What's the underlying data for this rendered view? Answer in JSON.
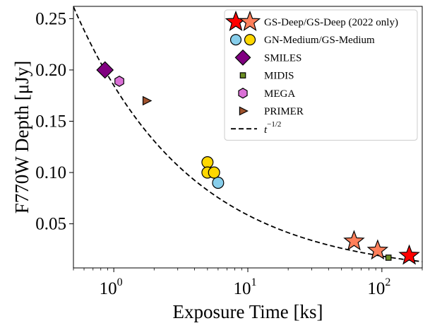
{
  "chart_data": {
    "type": "scatter",
    "xscale": "log",
    "xlim": [
      0.5,
      200
    ],
    "ylim": [
      0.007,
      0.262
    ],
    "xlabel": "Exposure Time [ks]",
    "ylabel": "F770W Depth [μJy]",
    "y_ticks": [
      {
        "value": 0.05,
        "label": "0.05"
      },
      {
        "value": 0.1,
        "label": "0.10"
      },
      {
        "value": 0.15,
        "label": "0.15"
      },
      {
        "value": 0.2,
        "label": "0.20"
      },
      {
        "value": 0.25,
        "label": "0.25"
      }
    ],
    "x_ticks": [
      {
        "value": 1,
        "base": "10",
        "exp": "0"
      },
      {
        "value": 10,
        "base": "10",
        "exp": "1"
      },
      {
        "value": 100,
        "base": "10",
        "exp": "2"
      }
    ],
    "curve": {
      "name": "t^{-1/2}",
      "label_base": "t",
      "label_exp": "−1/2",
      "coefficient": 0.185,
      "power": -0.5,
      "style": "dashed",
      "color": "#000000"
    },
    "series": [
      {
        "name": "GS-Deep",
        "marker": "star",
        "color": "#ff0000",
        "points": [
          [
            160,
            0.019
          ]
        ]
      },
      {
        "name": "GS-Deep (2022 only)",
        "marker": "star",
        "color": "#ff7f5a",
        "points": [
          [
            62,
            0.033
          ],
          [
            93,
            0.024
          ]
        ]
      },
      {
        "name": "GN-Medium",
        "marker": "circle",
        "color": "#87ceeb",
        "points": [
          [
            6.0,
            0.09
          ]
        ]
      },
      {
        "name": "GS-Medium",
        "marker": "circle",
        "color": "#ffd700",
        "points": [
          [
            5.0,
            0.11
          ],
          [
            5.0,
            0.1
          ],
          [
            5.6,
            0.1
          ]
        ]
      },
      {
        "name": "SMILES",
        "marker": "diamond",
        "color": "#800080",
        "points": [
          [
            0.86,
            0.2
          ]
        ]
      },
      {
        "name": "MIDIS",
        "marker": "square",
        "color": "#6b8e23",
        "points": [
          [
            112,
            0.017
          ]
        ]
      },
      {
        "name": "MEGA",
        "marker": "hexagon",
        "color": "#da70d6",
        "points": [
          [
            1.1,
            0.189
          ]
        ]
      },
      {
        "name": "PRIMER",
        "marker": "triangle-right",
        "color": "#a0522d",
        "points": [
          [
            1.75,
            0.17
          ]
        ]
      }
    ],
    "legend": {
      "position": "top-right",
      "entries": [
        {
          "label": "GS-Deep/GS-Deep (2022 only)",
          "markers": [
            {
              "shape": "star",
              "color": "#ff0000"
            },
            {
              "shape": "star",
              "color": "#ff7f5a"
            }
          ]
        },
        {
          "label": "GN-Medium/GS-Medium",
          "markers": [
            {
              "shape": "circle",
              "color": "#87ceeb"
            },
            {
              "shape": "circle",
              "color": "#ffd700"
            }
          ]
        },
        {
          "label": "SMILES",
          "markers": [
            {
              "shape": "diamond",
              "color": "#800080"
            }
          ]
        },
        {
          "label": "MIDIS",
          "markers": [
            {
              "shape": "square",
              "color": "#6b8e23"
            }
          ]
        },
        {
          "label": "MEGA",
          "markers": [
            {
              "shape": "hexagon",
              "color": "#da70d6"
            }
          ]
        },
        {
          "label": "PRIMER",
          "markers": [
            {
              "shape": "triangle-right",
              "color": "#a0522d"
            }
          ]
        },
        {
          "label": "t^{-1/2}",
          "line": "dashed"
        }
      ]
    }
  }
}
